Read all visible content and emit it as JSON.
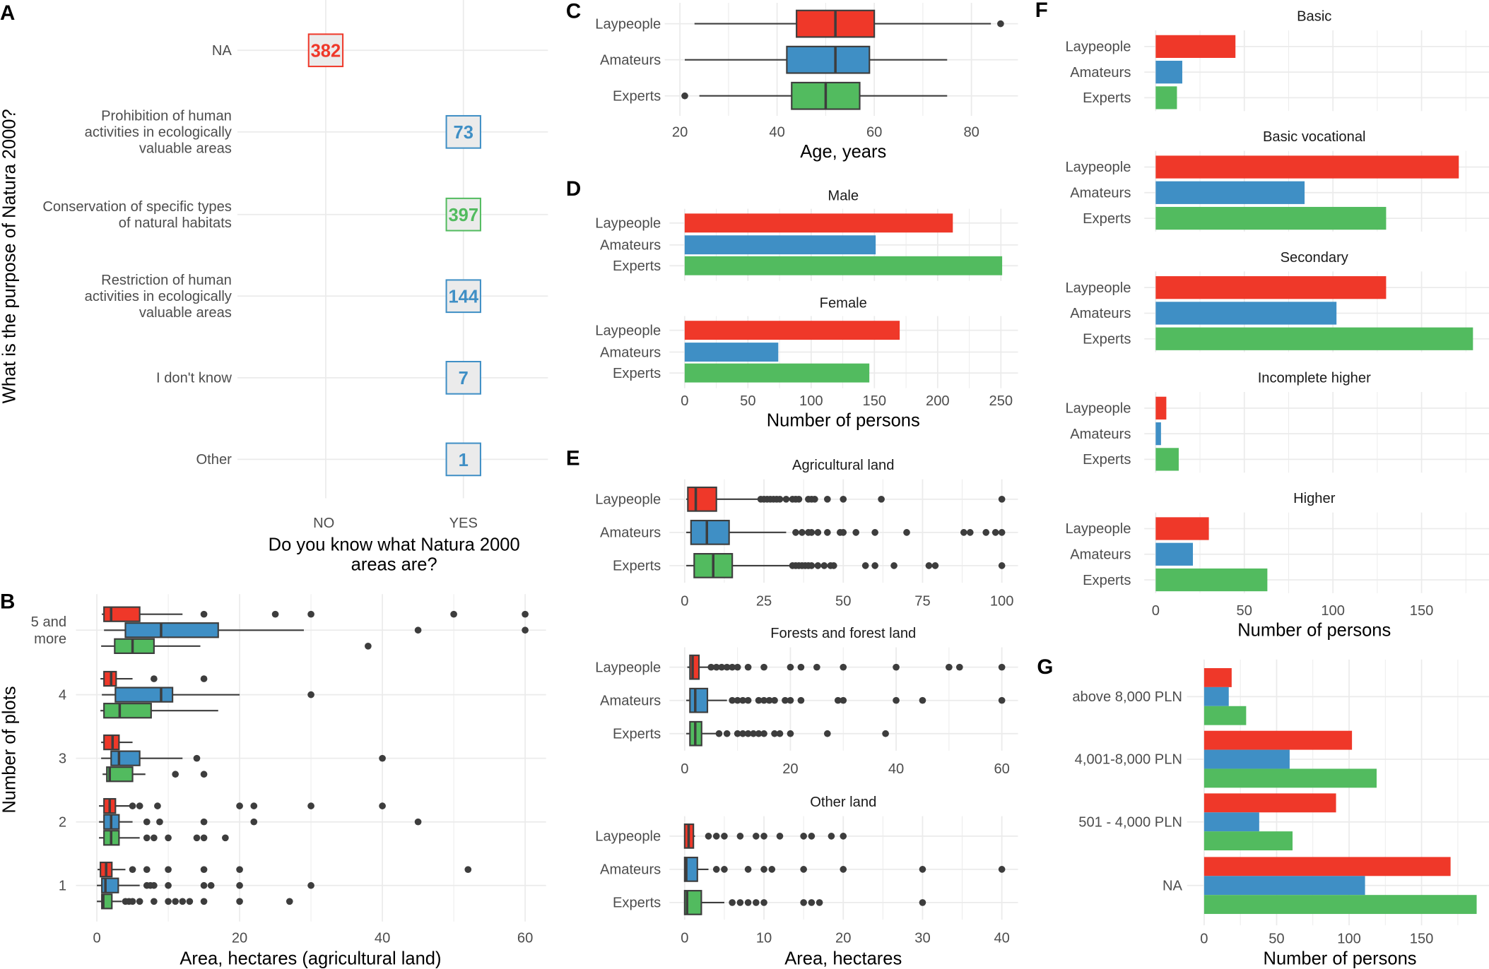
{
  "colors": {
    "laypeople": "#ef3829",
    "amateurs": "#3f8fc5",
    "experts": "#52bb5f",
    "outline": "#3d3d3d",
    "grid": "#ebebeb",
    "label_fill": "#ebebeb"
  },
  "chart_data": [
    {
      "panel": "A",
      "type": "scatter",
      "xlabel_lines": [
        "Do you know what Natura 2000",
        "areas are?"
      ],
      "ylabel": "What is the purpose of Natura 2000?",
      "x_categories": [
        "NO",
        "YES"
      ],
      "y_categories": [
        {
          "lines": [
            "NA"
          ]
        },
        {
          "lines": [
            "Prohibition of human",
            "activities in ecologically",
            "valuable areas"
          ]
        },
        {
          "lines": [
            "Conservation of specific types",
            "of natural habitats"
          ]
        },
        {
          "lines": [
            "Restriction of human",
            "activities in ecologically",
            "valuable areas"
          ]
        },
        {
          "lines": [
            "I don't know"
          ]
        },
        {
          "lines": [
            "Other"
          ]
        }
      ],
      "points": [
        {
          "x": "NO",
          "y_index": 0,
          "value": 382,
          "color": "laypeople"
        },
        {
          "x": "YES",
          "y_index": 1,
          "value": 73,
          "color": "amateurs"
        },
        {
          "x": "YES",
          "y_index": 2,
          "value": 397,
          "color": "experts"
        },
        {
          "x": "YES",
          "y_index": 3,
          "value": 144,
          "color": "amateurs"
        },
        {
          "x": "YES",
          "y_index": 4,
          "value": 7,
          "color": "amateurs"
        },
        {
          "x": "YES",
          "y_index": 5,
          "value": 1,
          "color": "amateurs"
        }
      ]
    },
    {
      "panel": "B",
      "type": "boxplot",
      "xlabel": "Area, hectares (agricultural land)",
      "ylabel": "Number of plots",
      "xlim": [
        0,
        60
      ],
      "xticks": [
        0,
        20,
        40,
        60
      ],
      "categories": [
        {
          "lines": [
            "5 and",
            "more"
          ],
          "series": [
            {
              "color": "laypeople",
              "whisker": [
                0.7,
                12
              ],
              "box": [
                1,
                6
              ],
              "median": 2,
              "outliers": [
                15,
                25,
                30,
                50,
                60
              ]
            },
            {
              "color": "amateurs",
              "whisker": [
                1,
                29
              ],
              "box": [
                4,
                17
              ],
              "median": 9,
              "outliers": [
                45,
                60
              ]
            },
            {
              "color": "experts",
              "whisker": [
                0.6,
                14.5
              ],
              "box": [
                2.5,
                8
              ],
              "median": 5,
              "outliers": [
                38
              ]
            }
          ]
        },
        {
          "lines": [
            "4"
          ],
          "series": [
            {
              "color": "laypeople",
              "whisker": [
                0.5,
                5
              ],
              "box": [
                1,
                2.7
              ],
              "median": 2,
              "outliers": [
                8,
                15
              ]
            },
            {
              "color": "amateurs",
              "whisker": [
                0.7,
                20
              ],
              "box": [
                2.6,
                10.6
              ],
              "median": 9,
              "outliers": [
                30
              ]
            },
            {
              "color": "experts",
              "whisker": [
                0.5,
                17
              ],
              "box": [
                1,
                7.6
              ],
              "median": 3.2,
              "outliers": []
            }
          ]
        },
        {
          "lines": [
            "3"
          ],
          "series": [
            {
              "color": "laypeople",
              "whisker": [
                0.6,
                5
              ],
              "box": [
                1,
                3.1
              ],
              "median": 2.2,
              "outliers": []
            },
            {
              "color": "amateurs",
              "whisker": [
                0.6,
                12
              ],
              "box": [
                2,
                6
              ],
              "median": 3.1,
              "outliers": [
                14,
                40
              ]
            },
            {
              "color": "experts",
              "whisker": [
                0.8,
                6.8
              ],
              "box": [
                1.4,
                5
              ],
              "median": 1.8,
              "outliers": [
                11,
                15
              ]
            }
          ]
        },
        {
          "lines": [
            "2"
          ],
          "series": [
            {
              "color": "laypeople",
              "whisker": [
                0.3,
                5
              ],
              "box": [
                1,
                2.6
              ],
              "median": 1.8,
              "outliers": [
                5,
                6,
                8.5,
                20,
                22,
                30,
                40
              ]
            },
            {
              "color": "amateurs",
              "whisker": [
                0.3,
                5
              ],
              "box": [
                1,
                3.1
              ],
              "median": 2,
              "outliers": [
                7,
                8.8,
                15,
                22,
                45
              ]
            },
            {
              "color": "experts",
              "whisker": [
                0.3,
                6
              ],
              "box": [
                1,
                3.1
              ],
              "median": 2,
              "outliers": [
                7,
                8,
                10,
                14,
                15,
                18
              ]
            }
          ]
        },
        {
          "lines": [
            "1"
          ],
          "series": [
            {
              "color": "laypeople",
              "whisker": [
                0.1,
                4
              ],
              "box": [
                0.5,
                2.1
              ],
              "median": 1.3,
              "outliers": [
                5,
                7,
                10,
                15,
                20,
                52
              ]
            },
            {
              "color": "amateurs",
              "whisker": [
                0,
                6
              ],
              "box": [
                0.7,
                3
              ],
              "median": 1.2,
              "outliers": [
                7,
                7.5,
                8,
                10,
                15,
                16,
                20,
                30
              ]
            },
            {
              "color": "experts",
              "whisker": [
                0,
                3.5
              ],
              "box": [
                0.7,
                2.1
              ],
              "median": 0.9,
              "outliers": [
                4,
                4.5,
                5,
                6,
                8,
                10,
                11,
                12,
                13,
                15,
                20,
                27
              ]
            }
          ]
        }
      ]
    },
    {
      "panel": "C",
      "type": "boxplot",
      "xlabel": "Age, years",
      "xlim": [
        20,
        80
      ],
      "xticks": [
        20,
        40,
        60,
        80
      ],
      "groups": [
        "Laypeople",
        "Amateurs",
        "Experts"
      ],
      "series": [
        {
          "color": "laypeople",
          "whisker": [
            23,
            84
          ],
          "box": [
            44,
            60
          ],
          "median": 52,
          "outliers": [
            86
          ]
        },
        {
          "color": "amateurs",
          "whisker": [
            21,
            75
          ],
          "box": [
            42,
            59
          ],
          "median": 52,
          "outliers": []
        },
        {
          "color": "experts",
          "whisker": [
            24,
            75
          ],
          "box": [
            43,
            57
          ],
          "median": 50,
          "outliers": [
            21
          ]
        }
      ]
    },
    {
      "panel": "D",
      "type": "bar",
      "xlabel": "Number of persons",
      "xlim": [
        0,
        250
      ],
      "xticks": [
        0,
        50,
        100,
        150,
        200,
        250
      ],
      "groups": [
        "Laypeople",
        "Amateurs",
        "Experts"
      ],
      "facets": [
        {
          "title": "Male",
          "values": [
            212,
            151,
            251
          ]
        },
        {
          "title": "Female",
          "values": [
            170,
            74,
            146
          ]
        }
      ]
    },
    {
      "panel": "E",
      "type": "boxplot",
      "xlabel": "Area, hectares",
      "groups": [
        "Laypeople",
        "Amateurs",
        "Experts"
      ],
      "facets": [
        {
          "title": "Agricultural land",
          "xlim": [
            0,
            100
          ],
          "xticks": [
            0,
            25,
            50,
            75,
            100
          ],
          "series": [
            {
              "color": "laypeople",
              "whisker": [
                0.5,
                23
              ],
              "box": [
                1,
                10
              ],
              "median": 3.5,
              "outliers": [
                24,
                25,
                26,
                27,
                28,
                29,
                30,
                32,
                34,
                35,
                36,
                39,
                40,
                41,
                45,
                50,
                62,
                100
              ]
            },
            {
              "color": "amateurs",
              "whisker": [
                0.5,
                32
              ],
              "box": [
                2,
                14
              ],
              "median": 7,
              "outliers": [
                35,
                37,
                39,
                40,
                42,
                45,
                49,
                50,
                54,
                60,
                70,
                88,
                90,
                95,
                98,
                100
              ]
            },
            {
              "color": "experts",
              "whisker": [
                0.5,
                33
              ],
              "box": [
                3,
                15
              ],
              "median": 9,
              "outliers": [
                34,
                35,
                36,
                37,
                38,
                39,
                40,
                42,
                44,
                46,
                47,
                57,
                60,
                66,
                77,
                79,
                100
              ]
            }
          ]
        },
        {
          "title": "Forests and forest land",
          "xlim": [
            0,
            60
          ],
          "xticks": [
            0,
            20,
            40,
            60
          ],
          "series": [
            {
              "color": "laypeople",
              "whisker": [
                0.5,
                5
              ],
              "box": [
                1,
                2.7
              ],
              "median": 1.5,
              "outliers": [
                5,
                6,
                7,
                8,
                9,
                10,
                12,
                15,
                20,
                22,
                25,
                30,
                40,
                50,
                52,
                60
              ]
            },
            {
              "color": "amateurs",
              "whisker": [
                0.3,
                8
              ],
              "box": [
                1,
                4.3
              ],
              "median": 2,
              "outliers": [
                9,
                10,
                11,
                12,
                14,
                15,
                16,
                17,
                19,
                20,
                22,
                29,
                30,
                40,
                45,
                60
              ]
            },
            {
              "color": "experts",
              "whisker": [
                0.3,
                6
              ],
              "box": [
                1,
                3.2
              ],
              "median": 2,
              "outliers": [
                6.5,
                8,
                10,
                11,
                12,
                13,
                14,
                15,
                17,
                18,
                20,
                27,
                38
              ]
            }
          ]
        },
        {
          "title": "Other land",
          "xlim": [
            0,
            40
          ],
          "xticks": [
            0,
            10,
            20,
            30,
            40
          ],
          "series": [
            {
              "color": "laypeople",
              "whisker": [
                0,
                1.3
              ],
              "box": [
                0,
                1.1
              ],
              "median": 0.5,
              "outliers": [
                3,
                4,
                5,
                7,
                9,
                10,
                12,
                15,
                16,
                18.5,
                20
              ]
            },
            {
              "color": "amateurs",
              "whisker": [
                0,
                3
              ],
              "box": [
                0,
                1.6
              ],
              "median": 0.2,
              "outliers": [
                4,
                5,
                8,
                10,
                11,
                15,
                20,
                30,
                40
              ]
            },
            {
              "color": "experts",
              "whisker": [
                0,
                5
              ],
              "box": [
                0,
                2.1
              ],
              "median": 0.3,
              "outliers": [
                6,
                7,
                8,
                9,
                10,
                15,
                16,
                17,
                30
              ]
            }
          ]
        }
      ]
    },
    {
      "panel": "F",
      "type": "bar",
      "xlabel": "Number of persons",
      "xlim": [
        0,
        180
      ],
      "xticks": [
        0,
        50,
        100,
        150
      ],
      "groups": [
        "Laypeople",
        "Amateurs",
        "Experts"
      ],
      "facets": [
        {
          "title": "Basic",
          "values": [
            45,
            15,
            12
          ]
        },
        {
          "title": "Basic vocational",
          "values": [
            171,
            84,
            130
          ]
        },
        {
          "title": "Secondary",
          "values": [
            130,
            102,
            179
          ]
        },
        {
          "title": "Incomplete higher",
          "values": [
            6,
            3,
            13
          ]
        },
        {
          "title": "Higher",
          "values": [
            30,
            21,
            63
          ]
        }
      ]
    },
    {
      "panel": "G",
      "type": "bar",
      "xlabel": "Number of persons",
      "xlim": [
        0,
        190
      ],
      "xticks": [
        0,
        50,
        100,
        150
      ],
      "categories": [
        "above 8,000 PLN",
        "4,001-8,000 PLN",
        "501 - 4,000 PLN",
        "NA"
      ],
      "series": [
        {
          "color": "laypeople",
          "values": [
            19,
            102,
            91,
            170
          ]
        },
        {
          "color": "amateurs",
          "values": [
            17,
            59,
            38,
            111
          ]
        },
        {
          "color": "experts",
          "values": [
            29,
            119,
            61,
            188
          ]
        }
      ]
    }
  ]
}
